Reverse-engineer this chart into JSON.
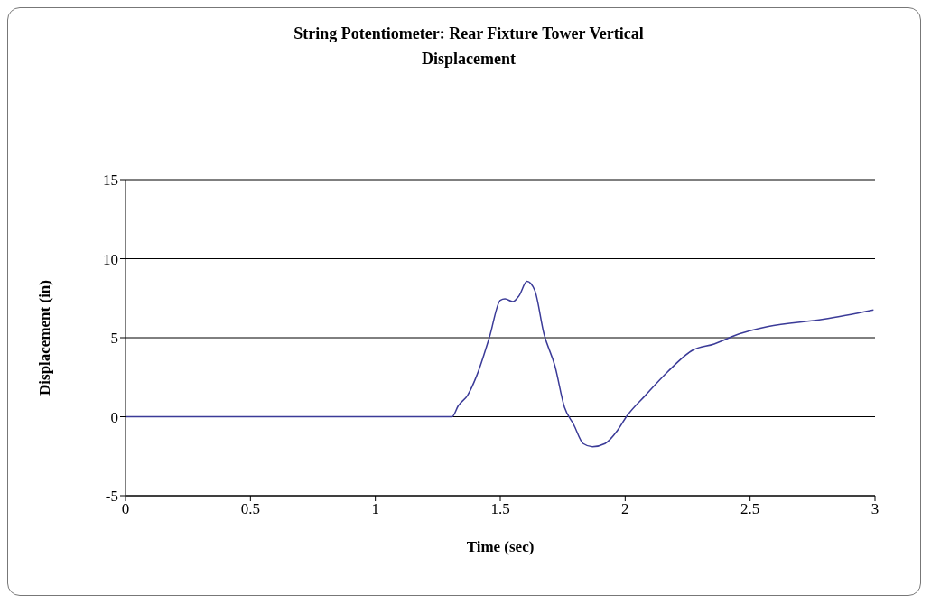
{
  "chart_data": {
    "type": "line",
    "title": "String Potentiometer: Rear Fixture Tower Vertical Displacement",
    "xlabel": "Time (sec)",
    "ylabel": "Displacement (in)",
    "x": [
      0,
      0.5,
      1,
      1.307,
      1.332,
      1.369,
      1.407,
      1.457,
      1.5,
      1.519,
      1.55,
      1.575,
      1.607,
      1.638,
      1.675,
      1.719,
      1.757,
      1.794,
      1.832,
      1.869,
      1.919,
      1.969,
      2.006,
      2.081,
      2.169,
      2.269,
      2.356,
      2.456,
      2.569,
      2.794,
      2.994
    ],
    "series": [
      {
        "color": "#3b3b98",
        "values": [
          0,
          0,
          0,
          0,
          0.7,
          1.35,
          2.65,
          5.05,
          7.37,
          7.46,
          7.28,
          7.65,
          8.57,
          8,
          5.24,
          3.2,
          0.6,
          -0.5,
          -1.7,
          -1.9,
          -1.7,
          -0.87,
          0.03,
          1.35,
          2.83,
          4.2,
          4.6,
          5.24,
          5.7,
          6.17,
          6.76
        ]
      }
    ],
    "xlim": [
      0,
      3
    ],
    "xticks": [
      0,
      0.5,
      1,
      1.5,
      2,
      2.5,
      3
    ],
    "ylim": [
      -5,
      15
    ],
    "yticks": [
      -5,
      0,
      5,
      10,
      15
    ],
    "grid": "y",
    "legend": false,
    "marker": "none",
    "line_style": "solid"
  }
}
